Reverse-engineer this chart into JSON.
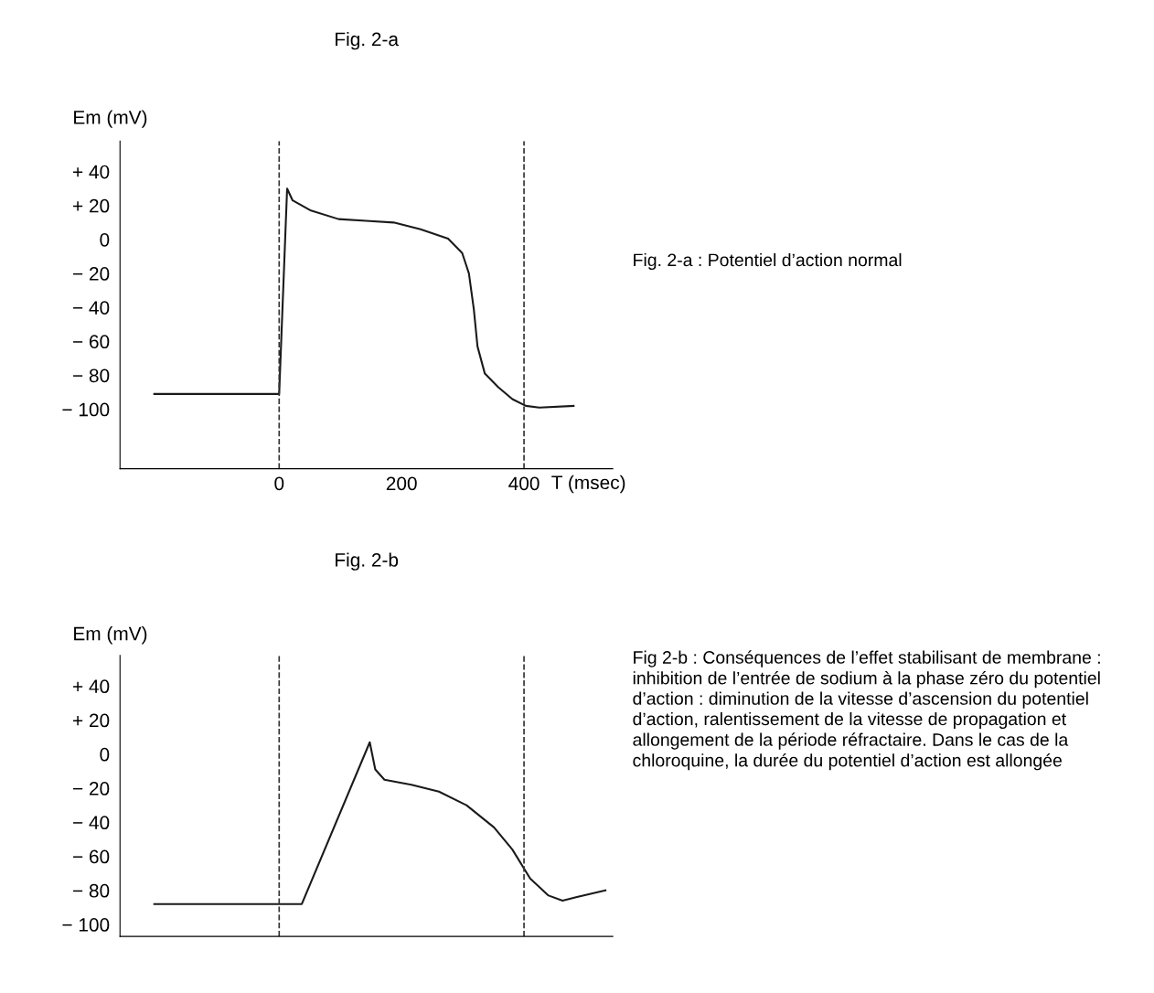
{
  "chart_data": [
    {
      "type": "line",
      "title": "Fig. 2-a",
      "ylabel": "Em (mV)",
      "xlabel": "T (msec)",
      "x": [
        -204,
        0,
        13,
        22,
        52,
        97,
        142,
        187,
        231,
        276,
        299,
        310,
        318,
        324,
        336,
        358,
        381,
        403,
        425,
        481
      ],
      "series": [
        {
          "color": "#1a1a1a",
          "values": [
            -91,
            -91,
            30,
            23,
            17,
            12,
            11,
            10,
            6,
            0.5,
            -8,
            -20,
            -41,
            -63,
            -79,
            -87,
            -94,
            -98,
            -99,
            -98
          ]
        }
      ],
      "xlim": [
        -260,
        545
      ],
      "ylim": [
        -135,
        58
      ],
      "xticks": [
        0,
        200,
        400
      ],
      "yticks": [
        {
          "value": 40,
          "label": "+ 40"
        },
        {
          "value": 20,
          "label": "+ 20"
        },
        0,
        {
          "value": -20,
          "label": "− 20"
        },
        {
          "value": -40,
          "label": "− 40"
        },
        {
          "value": -60,
          "label": "− 60"
        },
        {
          "value": -80,
          "label": "− 80"
        },
        {
          "value": -100,
          "label": "− 100"
        }
      ],
      "ref_lines": [
        {
          "axis": "x",
          "value": 0,
          "line_style": "dashed"
        },
        {
          "axis": "x",
          "value": 400,
          "line_style": "dashed"
        }
      ],
      "annotations": [
        "Fig. 2-a : Potentiel d’action normal"
      ],
      "grid": false,
      "legend": false,
      "marker": "none",
      "line_style": "solid"
    },
    {
      "type": "line",
      "title": "Fig. 2-b",
      "ylabel": "Em (mV)",
      "x": [
        -204,
        37,
        148,
        157,
        172,
        216,
        261,
        306,
        351,
        381,
        410,
        440,
        463,
        485,
        533
      ],
      "series": [
        {
          "color": "#1a1a1a",
          "values": [
            -88,
            -88,
            7,
            -9,
            -15,
            -18,
            -22,
            -30,
            -43,
            -56,
            -73,
            -83,
            -86,
            -84,
            -80
          ]
        }
      ],
      "xlim": [
        -260,
        545
      ],
      "ylim": [
        -107,
        58
      ],
      "xticks": [
        0,
        200,
        400
      ],
      "yticks": [
        {
          "value": 40,
          "label": "+ 40"
        },
        {
          "value": 20,
          "label": "+ 20"
        },
        0,
        {
          "value": -20,
          "label": "− 20"
        },
        {
          "value": -40,
          "label": "− 40"
        },
        {
          "value": -60,
          "label": "− 60"
        },
        {
          "value": -80,
          "label": "− 80"
        },
        {
          "value": -100,
          "label": "− 100"
        }
      ],
      "tick_labels": "y",
      "ref_lines": [
        {
          "axis": "x",
          "value": 0,
          "line_style": "dashed"
        },
        {
          "axis": "x",
          "value": 400,
          "line_style": "dashed"
        }
      ],
      "annotations": [
        "Fig 2-b : Conséquences de l’effet stabilisant de membrane : inhibition de l’entrée de sodium à la phase zéro du potentiel d’action : diminution de la vitesse d’ascension du potentiel d’action, ralentissement de la vitesse de propagation et allongement de la période réfractaire. Dans le cas de la chloroquine, la durée du potentiel d’action est allongée"
      ],
      "grid": false,
      "legend": false,
      "marker": "none",
      "line_style": "solid"
    }
  ]
}
